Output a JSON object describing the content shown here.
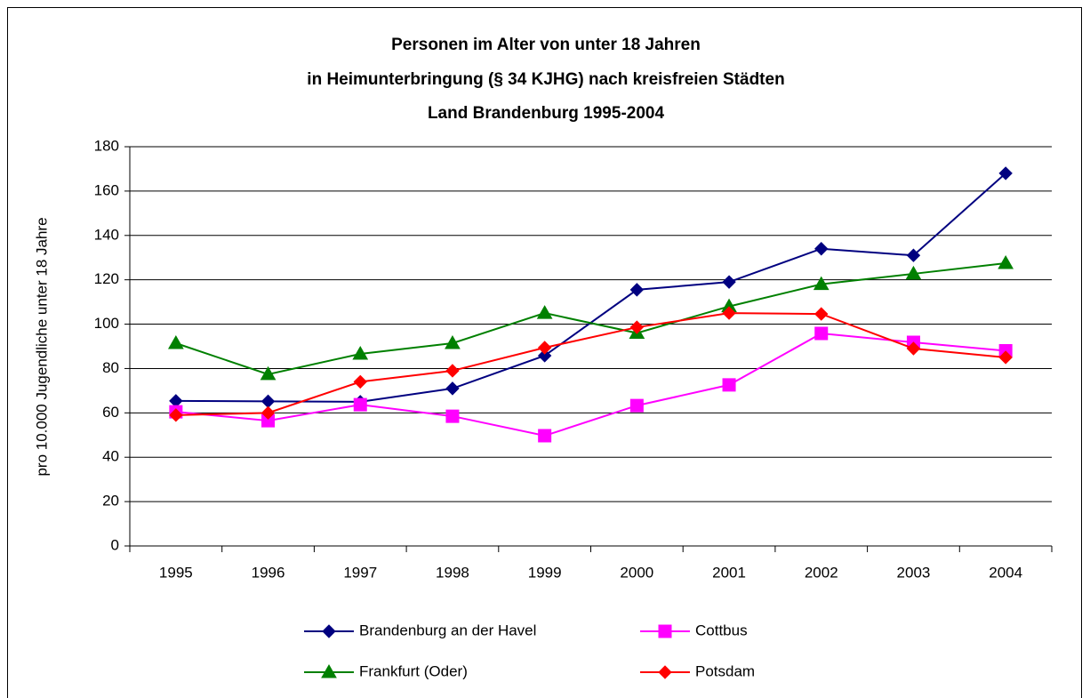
{
  "chart_data": {
    "type": "line",
    "title": [
      "Personen im Alter von unter 18 Jahren",
      "in Heimunterbringung (§ 34 KJHG) nach kreisfreien Städten",
      "Land Brandenburg 1995-2004"
    ],
    "y_label": "pro 10.000 Jugendliche unter 18 Jahre",
    "categories": [
      "1995",
      "1996",
      "1997",
      "1998",
      "1999",
      "2000",
      "2001",
      "2002",
      "2003",
      "2004"
    ],
    "series": [
      {
        "name": "Brandenburg an der Havel",
        "color": "#000080",
        "marker": "diamond",
        "values": [
          65.4,
          65.2,
          65,
          71,
          85.8,
          115.5,
          119,
          134,
          131,
          168
        ]
      },
      {
        "name": "Cottbus",
        "color": "#ff00ff",
        "marker": "square",
        "values": [
          60.5,
          56.5,
          63.7,
          58.5,
          49.7,
          63.3,
          72.6,
          95.8,
          91.8,
          88
        ]
      },
      {
        "name": "Frankfurt (Oder)",
        "color": "#008000",
        "marker": "triangle",
        "values": [
          91.4,
          77.4,
          86.6,
          91.4,
          105,
          96,
          108,
          118,
          122.7,
          127.5
        ]
      },
      {
        "name": "Potsdam",
        "color": "#ff0000",
        "marker": "diamond",
        "values": [
          59,
          60,
          74,
          79,
          89.4,
          98.6,
          105,
          104.6,
          89,
          85
        ]
      }
    ],
    "ylim": [
      0,
      180
    ],
    "yticks": [
      0,
      20,
      40,
      60,
      80,
      100,
      120,
      140,
      160,
      180
    ],
    "grid": true,
    "legend": "bottom"
  }
}
